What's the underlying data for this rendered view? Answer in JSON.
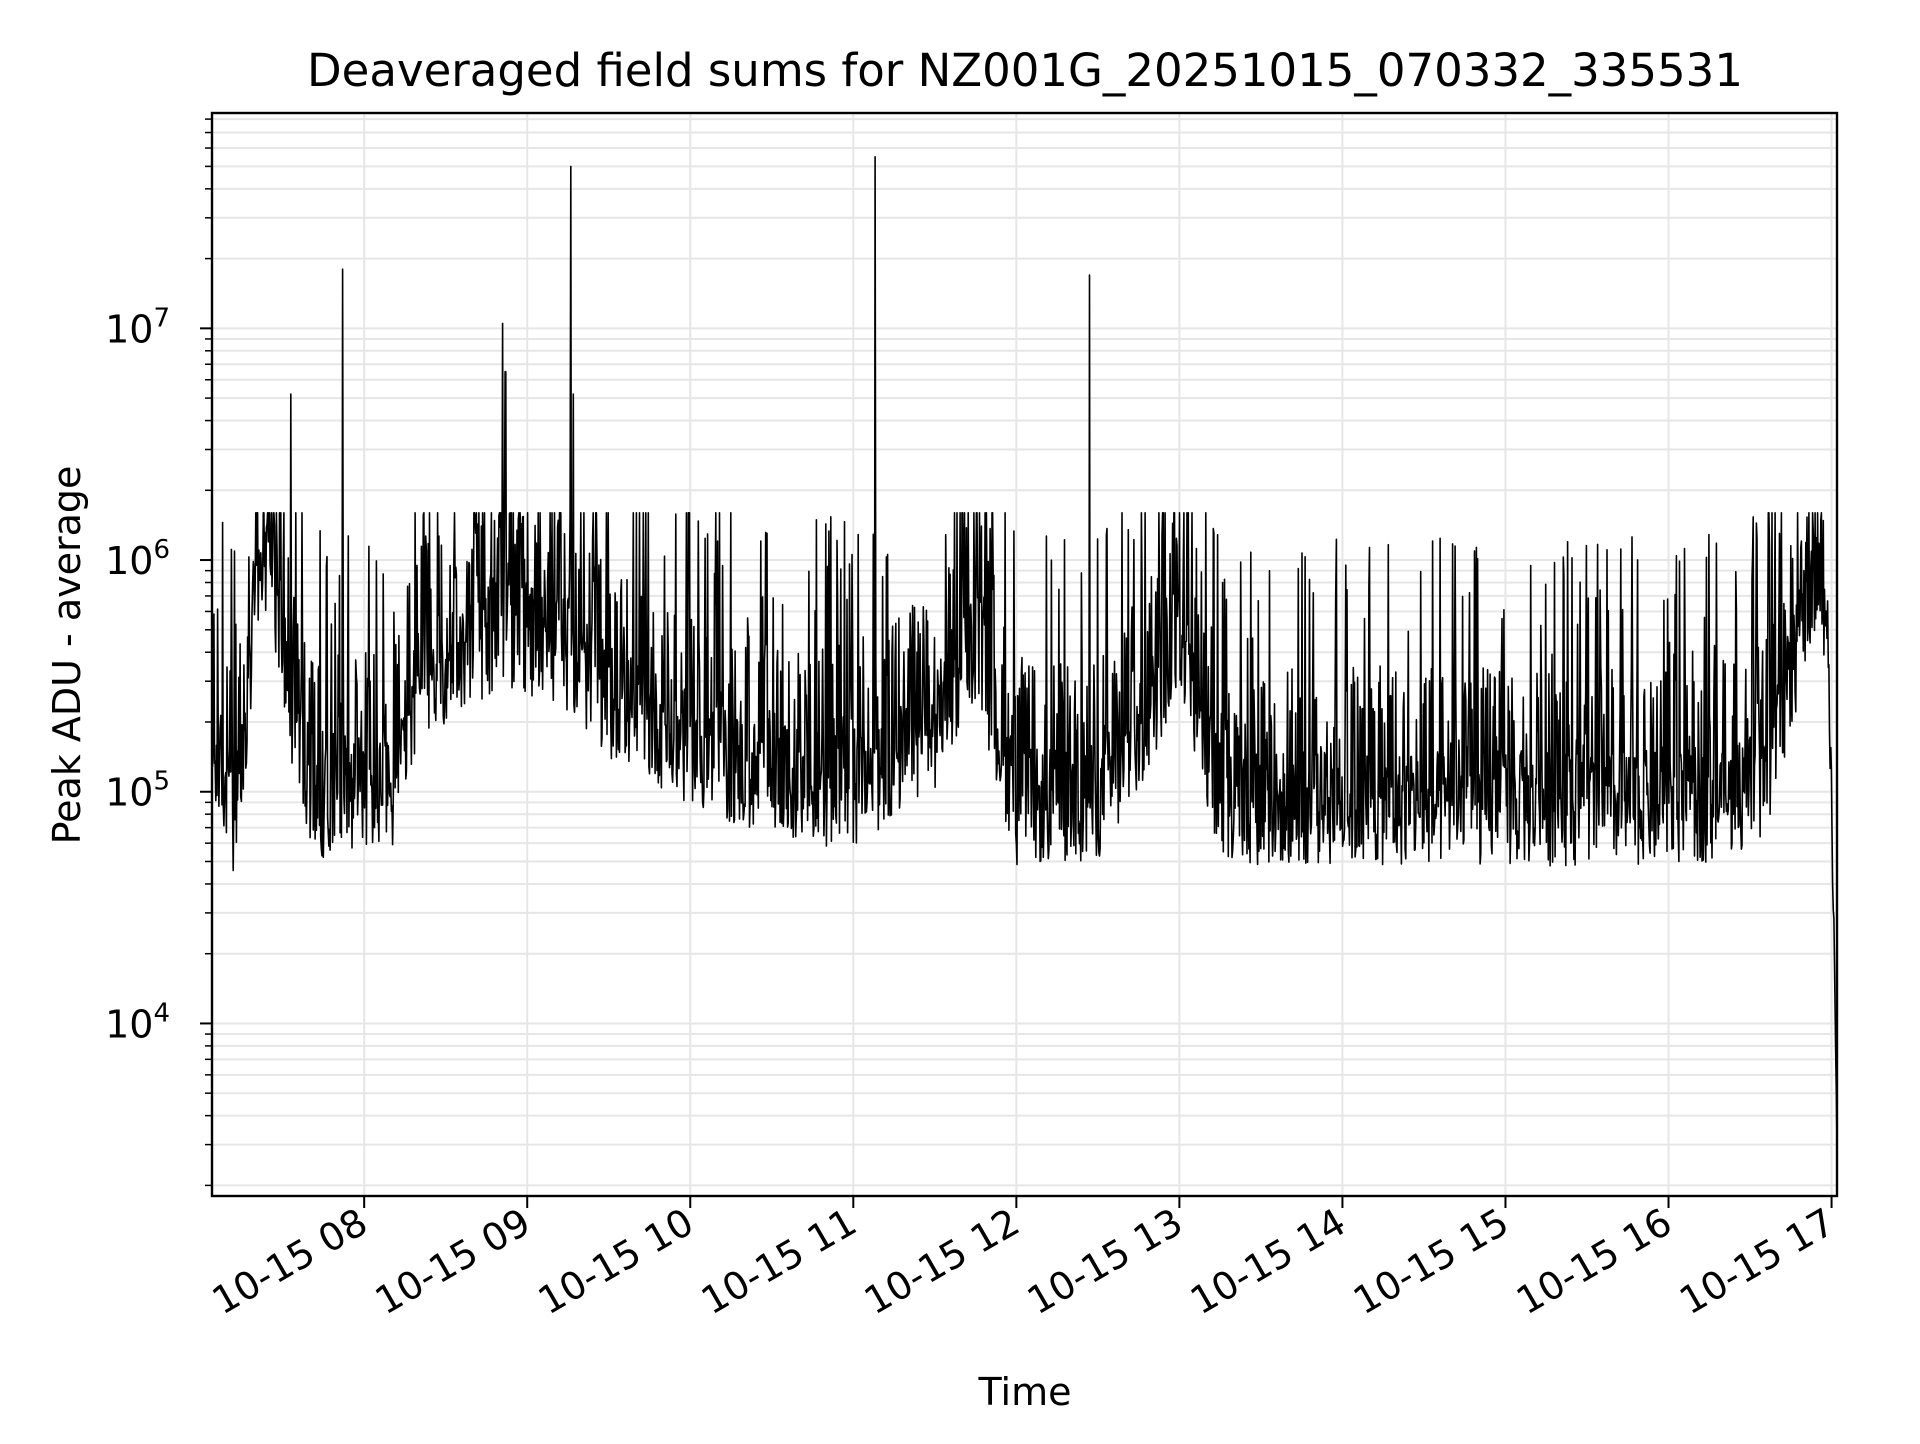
{
  "chart_data": {
    "type": "line",
    "title": "Deaveraged field sums for NZ001G_20251015_070332_335531",
    "xlabel": "Time",
    "ylabel": "Peak ADU - average",
    "yscale": "log",
    "grid": true,
    "legend": "none",
    "line_color": "#000000",
    "grid_color": "#e6e6e6",
    "x_range": [
      "2025-10-15 07:04",
      "2025-10-15 17:02"
    ],
    "ylim": [
      1800,
      85000000
    ],
    "x_ticks": [
      {
        "time": "2025-10-15 08:00",
        "label": "10-15 08"
      },
      {
        "time": "2025-10-15 09:00",
        "label": "10-15 09"
      },
      {
        "time": "2025-10-15 10:00",
        "label": "10-15 10"
      },
      {
        "time": "2025-10-15 11:00",
        "label": "10-15 11"
      },
      {
        "time": "2025-10-15 12:00",
        "label": "10-15 12"
      },
      {
        "time": "2025-10-15 13:00",
        "label": "10-15 13"
      },
      {
        "time": "2025-10-15 14:00",
        "label": "10-15 14"
      },
      {
        "time": "2025-10-15 15:00",
        "label": "10-15 15"
      },
      {
        "time": "2025-10-15 16:00",
        "label": "10-15 16"
      },
      {
        "time": "2025-10-15 17:00",
        "label": "10-15 17"
      }
    ],
    "y_ticks": [
      {
        "value": 10000,
        "base": "10",
        "exp": "4"
      },
      {
        "value": 100000,
        "base": "10",
        "exp": "5"
      },
      {
        "value": 1000000,
        "base": "10",
        "exp": "6"
      },
      {
        "value": 10000000,
        "base": "10",
        "exp": "7"
      }
    ],
    "series": [
      {
        "x": [
          "2025-10-15 07:04",
          "2025-10-15 07:08",
          "2025-10-15 07:12",
          "2025-10-15 07:16",
          "2025-10-15 07:20",
          "2025-10-15 07:24",
          "2025-10-15 07:28",
          "2025-10-15 07:32",
          "2025-10-15 07:36",
          "2025-10-15 07:40",
          "2025-10-15 07:44",
          "2025-10-15 07:48",
          "2025-10-15 07:52",
          "2025-10-15 07:56",
          "2025-10-15 08:00",
          "2025-10-15 08:10",
          "2025-10-15 08:20",
          "2025-10-15 08:30",
          "2025-10-15 08:40",
          "2025-10-15 08:50",
          "2025-10-15 09:00",
          "2025-10-15 09:15",
          "2025-10-15 09:30",
          "2025-10-15 09:45",
          "2025-10-15 10:00",
          "2025-10-15 10:30",
          "2025-10-15 11:00",
          "2025-10-15 11:30",
          "2025-10-15 11:45",
          "2025-10-15 12:00",
          "2025-10-15 12:30",
          "2025-10-15 12:45",
          "2025-10-15 13:00",
          "2025-10-15 13:15",
          "2025-10-15 13:30",
          "2025-10-15 14:00",
          "2025-10-15 14:30",
          "2025-10-15 15:00",
          "2025-10-15 15:30",
          "2025-10-15 16:00",
          "2025-10-15 16:20",
          "2025-10-15 16:35",
          "2025-10-15 16:45",
          "2025-10-15 16:52",
          "2025-10-15 16:56",
          "2025-10-15 17:00",
          "2025-10-15 17:02"
        ],
        "y": [
          150000,
          120000,
          70000,
          150000,
          650000,
          900000,
          650000,
          250000,
          130000,
          110000,
          90000,
          100000,
          110000,
          100000,
          100000,
          95000,
          300000,
          350000,
          400000,
          500000,
          450000,
          400000,
          250000,
          200000,
          150000,
          110000,
          100000,
          180000,
          450000,
          85000,
          90000,
          160000,
          500000,
          90000,
          85000,
          85000,
          85000,
          85000,
          85000,
          85000,
          90000,
          110000,
          300000,
          700000,
          900000,
          150000,
          3000
        ]
      }
    ],
    "spikes": [
      {
        "x": "2025-10-15 07:33",
        "y": 5200000
      },
      {
        "x": "2025-10-15 07:52",
        "y": 18000000
      },
      {
        "x": "2025-10-15 08:51",
        "y": 10500000
      },
      {
        "x": "2025-10-15 08:52",
        "y": 6500000
      },
      {
        "x": "2025-10-15 09:16",
        "y": 50000000
      },
      {
        "x": "2025-10-15 09:17",
        "y": 5200000
      },
      {
        "x": "2025-10-15 11:08",
        "y": 55000000
      },
      {
        "x": "2025-10-15 12:27",
        "y": 17000000
      }
    ]
  }
}
